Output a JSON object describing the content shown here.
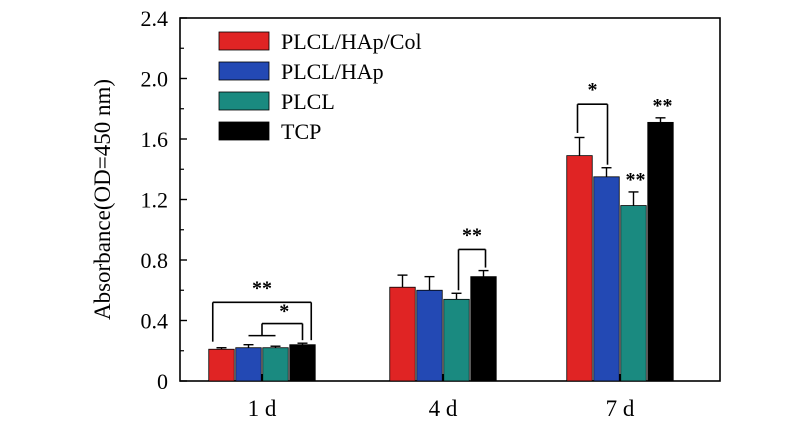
{
  "chart_data": {
    "type": "bar",
    "ylabel": "Absorbance(OD=450 nm)",
    "xlabel": "",
    "ylim": [
      0,
      2.4
    ],
    "yticks": [
      0,
      0.4,
      0.8,
      1.2,
      1.6,
      2.0,
      2.4
    ],
    "ytick_labels": [
      "0",
      "0.4",
      "0.8",
      "1.2",
      "1.6",
      "2.0",
      "2.4"
    ],
    "categories": [
      "1 d",
      "4 d",
      "7 d"
    ],
    "legend_position": "top-left",
    "grid": false,
    "series": [
      {
        "name": "PLCL/HAp/Col",
        "color": "#e02424",
        "values": [
          0.21,
          0.62,
          1.49
        ],
        "errors": [
          0.01,
          0.08,
          0.12
        ]
      },
      {
        "name": "PLCL/HAp",
        "color": "#2349b4",
        "values": [
          0.22,
          0.6,
          1.35
        ],
        "errors": [
          0.02,
          0.09,
          0.06
        ]
      },
      {
        "name": "PLCL",
        "color": "#1a8a80",
        "values": [
          0.22,
          0.54,
          1.16
        ],
        "errors": [
          0.01,
          0.04,
          0.09
        ]
      },
      {
        "name": "TCP",
        "color": "#000000",
        "values": [
          0.24,
          0.69,
          1.71
        ],
        "errors": [
          0.01,
          0.04,
          0.03
        ]
      }
    ],
    "annotations": [
      {
        "text": "**",
        "category": "1 d",
        "type": "bracket",
        "from_series": 0,
        "to_series": 3
      },
      {
        "text": "*",
        "category": "1 d",
        "type": "nested-bracket",
        "from_series": 1,
        "to_series": 3
      },
      {
        "text": "**",
        "category": "4 d",
        "type": "bracket",
        "from_series": 2,
        "to_series": 3
      },
      {
        "text": "*",
        "category": "7 d",
        "type": "bracket",
        "from_series": 0,
        "to_series": 1
      },
      {
        "text": "**",
        "category": "7 d",
        "type": "above-bar",
        "series": 2
      },
      {
        "text": "**",
        "category": "7 d",
        "type": "above-bar",
        "series": 3
      }
    ]
  }
}
